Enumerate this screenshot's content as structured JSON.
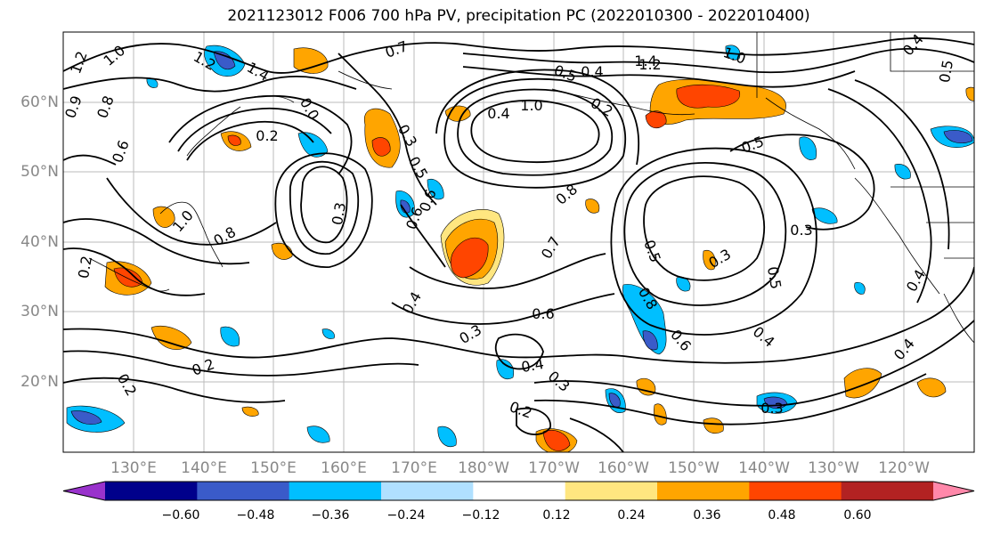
{
  "title": "2021123012 F006 700 hPa PV, precipitation PC (2022010300 - 2022010400)",
  "lat_labels": [
    "60°N",
    "50°N",
    "40°N",
    "30°N",
    "20°N"
  ],
  "lon_labels": [
    "130°E",
    "140°E",
    "150°E",
    "160°E",
    "170°E",
    "180°W",
    "170°W",
    "160°W",
    "150°W",
    "140°W",
    "130°W",
    "120°W"
  ],
  "colorbar": {
    "colors": [
      "#9932cc",
      "#00008b",
      "#3a5bc9",
      "#00bfff",
      "#b0e0ff",
      "#ffffff",
      "#ffe680",
      "#ffa500",
      "#ff4500",
      "#b22222",
      "#ff88aa"
    ],
    "ticks": [
      "−0.60",
      "−0.48",
      "−0.36",
      "−0.24",
      "−0.12",
      "0.12",
      "0.24",
      "0.36",
      "0.48",
      "0.60"
    ]
  },
  "contour_labels": [
    "1.2",
    "1.0",
    "1.2",
    "1.4",
    "0.7",
    "1.4",
    "1.2",
    "1.0",
    "0.9",
    "0.8",
    "0.2",
    "0.0",
    "0.3",
    "0.5",
    "0.6",
    "0.5",
    "0.4",
    "1.0",
    "0.8",
    "0.6",
    "0.4",
    "0.2",
    "0.7",
    "0.6",
    "0.5",
    "0.3",
    "0.6",
    "0.8",
    "1.0",
    "0.2",
    "0.8",
    "0.5",
    "0.4",
    "0.3",
    "0.4",
    "0.3",
    "0.2",
    "0.2",
    "0.3",
    "0.4",
    "0.5",
    "0.6",
    "0.4",
    "0.5",
    "0.3",
    "0.4",
    "0.3",
    "0.2",
    "0.4"
  ]
}
